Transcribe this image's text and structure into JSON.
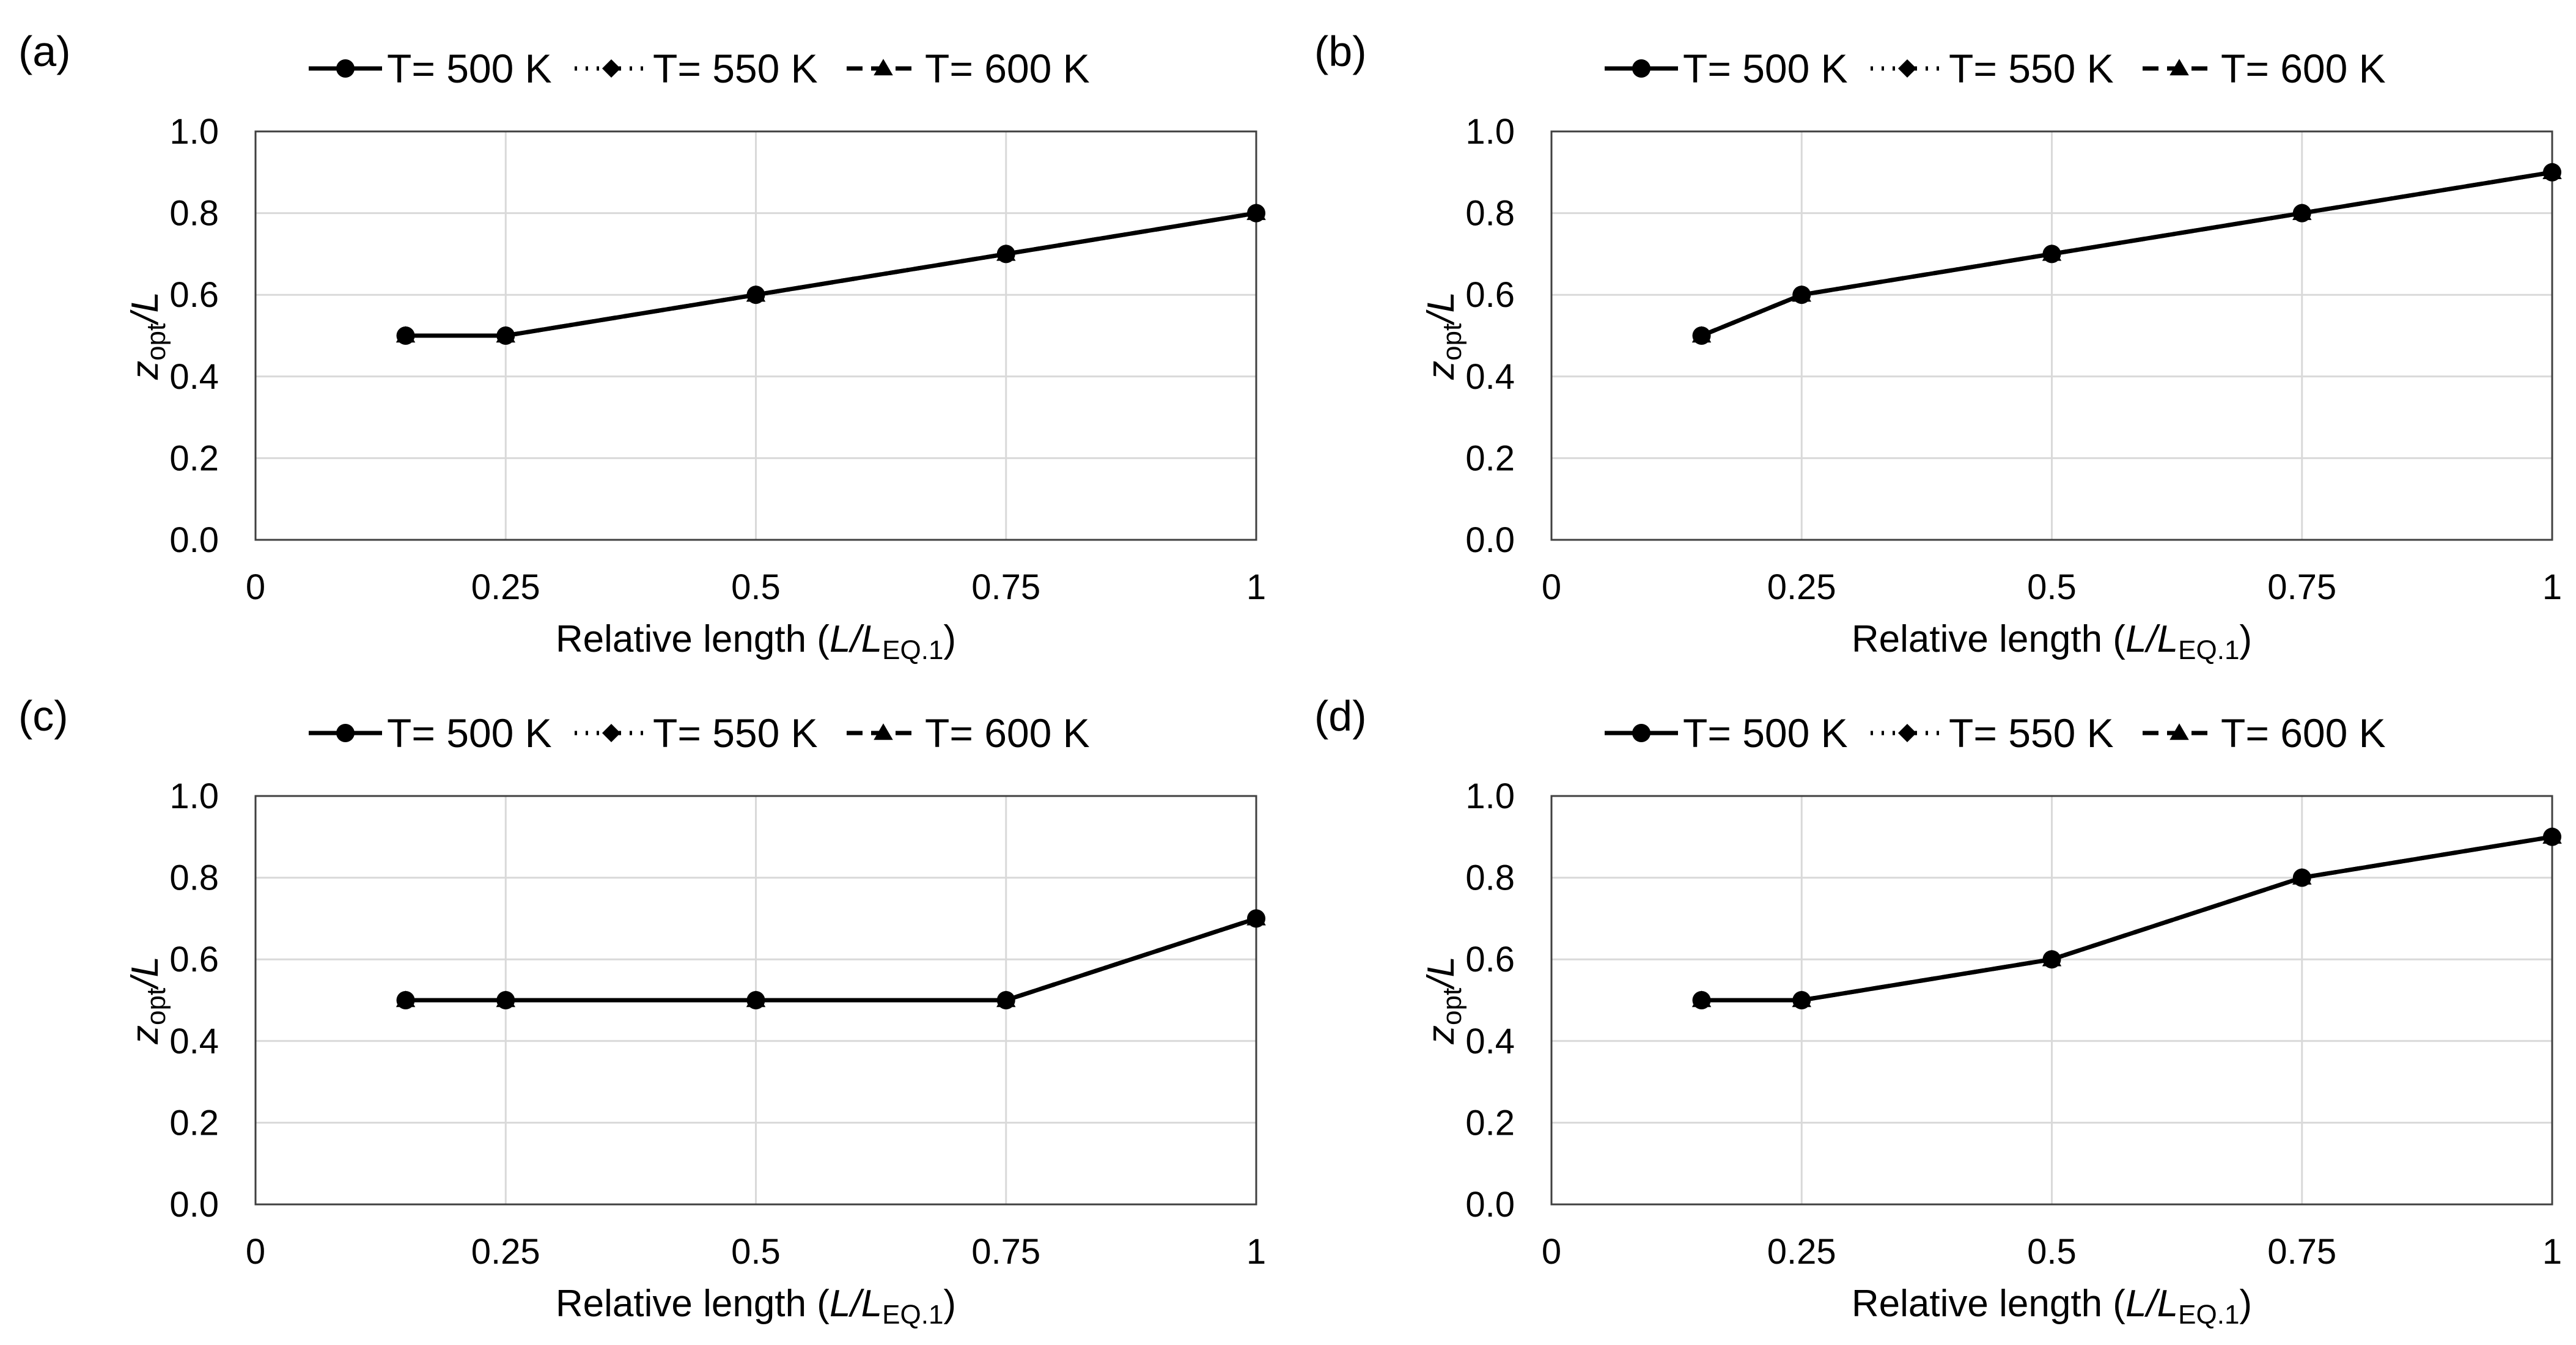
{
  "figure": {
    "x_label": {
      "main": "Relative length (",
      "italic": "L/L",
      "sub": "EQ.1",
      "close": ")"
    },
    "y_label": {
      "italic_z": "z",
      "sub": "opt",
      "rest": "/L"
    },
    "legend": [
      {
        "label": "T= 500 K",
        "marker": "circle",
        "line": "solid"
      },
      {
        "label": "T= 550 K",
        "marker": "diamond",
        "line": "dotted"
      },
      {
        "label": "T= 600 K",
        "marker": "triangle",
        "line": "dashed"
      }
    ],
    "x_ticks": [
      "0",
      "0.25",
      "0.5",
      "0.75",
      "1"
    ],
    "y_ticks": [
      "0.0",
      "0.2",
      "0.4",
      "0.6",
      "0.8",
      "1.0"
    ]
  },
  "chart_data": [
    {
      "type": "line",
      "panel": "(a)",
      "xlim": [
        0,
        1
      ],
      "ylim": [
        0,
        1
      ],
      "x": [
        0.15,
        0.25,
        0.5,
        0.75,
        1
      ],
      "series": [
        {
          "name": "T= 500 K",
          "values": [
            0.5,
            0.5,
            0.6,
            0.7,
            0.8
          ]
        },
        {
          "name": "T= 550 K",
          "values": [
            0.5,
            0.5,
            0.6,
            0.7,
            0.8
          ]
        },
        {
          "name": "T= 600 K",
          "values": [
            0.5,
            0.5,
            0.6,
            0.7,
            0.8
          ]
        }
      ]
    },
    {
      "type": "line",
      "panel": "(b)",
      "xlim": [
        0,
        1
      ],
      "ylim": [
        0,
        1
      ],
      "x": [
        0.15,
        0.25,
        0.5,
        0.75,
        1
      ],
      "series": [
        {
          "name": "T= 500 K",
          "values": [
            0.5,
            0.6,
            0.7,
            0.8,
            0.9
          ]
        },
        {
          "name": "T= 550 K",
          "values": [
            0.5,
            0.6,
            0.7,
            0.8,
            0.9
          ]
        },
        {
          "name": "T= 600 K",
          "values": [
            0.5,
            0.6,
            0.7,
            0.8,
            0.9
          ]
        }
      ]
    },
    {
      "type": "line",
      "panel": "(c)",
      "xlim": [
        0,
        1
      ],
      "ylim": [
        0,
        1
      ],
      "x": [
        0.15,
        0.25,
        0.5,
        0.75,
        1
      ],
      "series": [
        {
          "name": "T= 500 K",
          "values": [
            0.5,
            0.5,
            0.5,
            0.5,
            0.7
          ]
        },
        {
          "name": "T= 550 K",
          "values": [
            0.5,
            0.5,
            0.5,
            0.5,
            0.7
          ]
        },
        {
          "name": "T= 600 K",
          "values": [
            0.5,
            0.5,
            0.5,
            0.5,
            0.7
          ]
        }
      ]
    },
    {
      "type": "line",
      "panel": "(d)",
      "xlim": [
        0,
        1
      ],
      "ylim": [
        0,
        1
      ],
      "x": [
        0.15,
        0.25,
        0.5,
        0.75,
        1
      ],
      "series": [
        {
          "name": "T= 500 K",
          "values": [
            0.5,
            0.5,
            0.6,
            0.8,
            0.9
          ]
        },
        {
          "name": "T= 550 K",
          "values": [
            0.5,
            0.5,
            0.6,
            0.8,
            0.9
          ]
        },
        {
          "name": "T= 600 K",
          "values": [
            0.5,
            0.5,
            0.6,
            0.8,
            0.9
          ]
        }
      ]
    }
  ]
}
